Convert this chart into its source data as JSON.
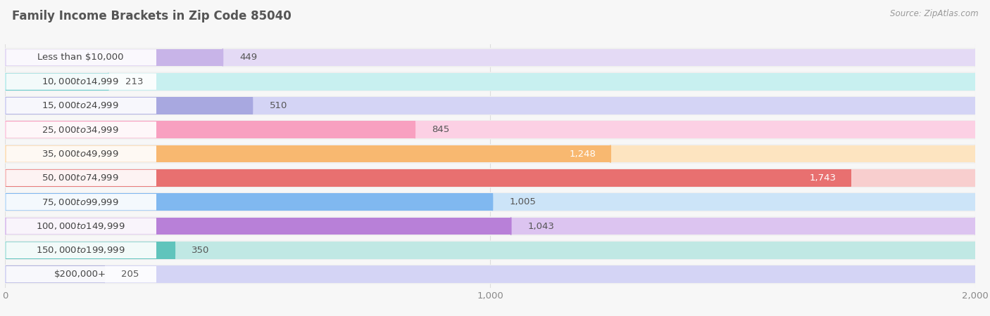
{
  "title": "Family Income Brackets in Zip Code 85040",
  "source": "Source: ZipAtlas.com",
  "categories": [
    "Less than $10,000",
    "$10,000 to $14,999",
    "$15,000 to $24,999",
    "$25,000 to $34,999",
    "$35,000 to $49,999",
    "$50,000 to $74,999",
    "$75,000 to $99,999",
    "$100,000 to $149,999",
    "$150,000 to $199,999",
    "$200,000+"
  ],
  "values": [
    449,
    213,
    510,
    845,
    1248,
    1743,
    1005,
    1043,
    350,
    205
  ],
  "bar_colors": [
    "#c8b4e8",
    "#6ecece",
    "#a8a8e0",
    "#f8a0c0",
    "#f8b870",
    "#e87070",
    "#80b8f0",
    "#b880d8",
    "#60c4bc",
    "#b0b0e0"
  ],
  "bar_bg_colors": [
    "#e4daf5",
    "#c8f0f0",
    "#d4d4f5",
    "#fcd0e4",
    "#fde4c0",
    "#f8cece",
    "#cce4f8",
    "#dcc4f0",
    "#c0e8e4",
    "#d4d4f5"
  ],
  "value_colors": [
    "#666666",
    "#666666",
    "#666666",
    "#666666",
    "#ffffff",
    "#ffffff",
    "#666666",
    "#666666",
    "#666666",
    "#666666"
  ],
  "xlim": [
    0,
    2000
  ],
  "xticks": [
    0,
    1000,
    2000
  ],
  "xtick_labels": [
    "0",
    "1,000",
    "2,000"
  ],
  "title_fontsize": 12,
  "label_fontsize": 9.5,
  "value_fontsize": 9.5,
  "bg_color": "#f7f7f7",
  "row_bg_color": "#efefef",
  "grid_color": "#dddddd",
  "label_bg_color": "#ffffff"
}
